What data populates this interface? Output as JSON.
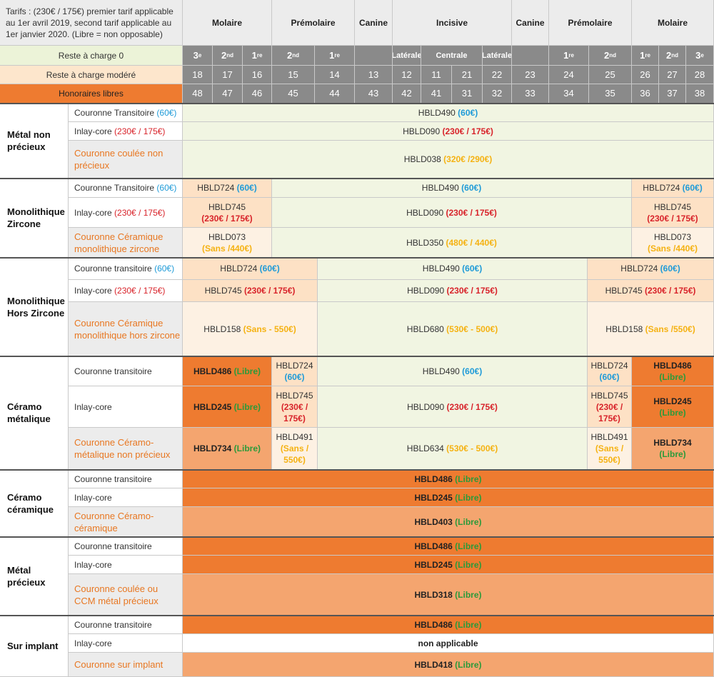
{
  "header": {
    "tarif_note": "Tarifs : (230€ / 175€) premier tarif applicable au 1er avril 2019, second tarif applicable au 1er janvier 2020. (Libre = non opposable)",
    "groups": [
      "Molaire",
      "Prémolaire",
      "Canine",
      "Incisive",
      "Canine",
      "Prémolaire",
      "Molaire"
    ],
    "rac0_label": "Reste à charge 0",
    "rac0_cells": [
      "3e",
      "2nd",
      "1re",
      "2nd",
      "1re",
      "",
      "Latérale",
      "Centrale",
      "Latérale",
      "",
      "1re",
      "2nd",
      "1re",
      "2nd",
      "3e"
    ],
    "racm_label": "Reste à charge modéré",
    "racm_teeth": [
      "18",
      "17",
      "16",
      "15",
      "14",
      "13",
      "12",
      "11",
      "21",
      "22",
      "23",
      "24",
      "25",
      "26",
      "27",
      "28"
    ],
    "hl_label": "Honoraires libres",
    "hl_teeth": [
      "48",
      "47",
      "46",
      "45",
      "44",
      "43",
      "42",
      "41",
      "31",
      "32",
      "33",
      "34",
      "35",
      "36",
      "37",
      "38"
    ]
  },
  "sections": [
    {
      "name": "Métal non précieux",
      "rows": [
        {
          "label": "Couronne Transitoire",
          "price": "(60€)",
          "cells": [
            {
              "code": "HBLD490",
              "price": "(60€)"
            }
          ]
        },
        {
          "label": "Inlay-core",
          "price": "(230€ / 175€)",
          "cells": [
            {
              "code": "HBLD090",
              "price": "(230€ / 175€)"
            }
          ]
        },
        {
          "label": "Couronne coulée non précieux",
          "cells": [
            {
              "code": "HBLD038",
              "price": "(320€ /290€)"
            }
          ]
        }
      ]
    },
    {
      "name": "Monolithique Zircone",
      "rows": [
        {
          "label": "Couronne Transitoire",
          "price": "(60€)",
          "cells": [
            {
              "code": "HBLD724",
              "price": "(60€)"
            },
            {
              "code": "HBLD490",
              "price": "(60€)"
            },
            {
              "code": "HBLD724",
              "price": "(60€)"
            }
          ]
        },
        {
          "label": "Inlay-core",
          "price": "(230€ / 175€)",
          "cells": [
            {
              "code": "HBLD745",
              "price": "(230€ / 175€)"
            },
            {
              "code": "HBLD090",
              "price": "(230€ / 175€)"
            },
            {
              "code": "HBLD745",
              "price": "(230€ / 175€)"
            }
          ]
        },
        {
          "label": "Couronne Céramique monolithique zircone",
          "cells": [
            {
              "code": "HBLD073",
              "price": "(Sans /440€)"
            },
            {
              "code": "HBLD350",
              "price": "(480€ / 440€)"
            },
            {
              "code": "HBLD073",
              "price": "(Sans /440€)"
            }
          ]
        }
      ]
    },
    {
      "name": "Monolithique Hors Zircone",
      "rows": [
        {
          "label": "Couronne transitoire",
          "price": "(60€)",
          "cells": [
            {
              "code": "HBLD724",
              "price": "(60€)"
            },
            {
              "code": "HBLD490",
              "price": "(60€)"
            },
            {
              "code": "HBLD724",
              "price": "(60€)"
            }
          ]
        },
        {
          "label": "Inlay-core",
          "price": "(230€ / 175€)",
          "cells": [
            {
              "code": "HBLD745",
              "price": "(230€ / 175€)"
            },
            {
              "code": "HBLD090",
              "price": "(230€ / 175€)"
            },
            {
              "code": "HBLD745",
              "price": "(230€ / 175€)"
            }
          ]
        },
        {
          "label": "Couronne Céramique monolithique hors zircone",
          "cells": [
            {
              "code": "HBLD158",
              "price": "(Sans - 550€)"
            },
            {
              "code": "HBLD680",
              "price": "(530€ - 500€)"
            },
            {
              "code": "HBLD158",
              "price": "(Sans /550€)"
            }
          ]
        }
      ]
    },
    {
      "name": "Céramo métalique",
      "rows": [
        {
          "label": "Couronne transitoire",
          "cells": [
            {
              "code": "HBLD486",
              "price": "(Libre)"
            },
            {
              "code": "HBLD724",
              "price": "(60€)"
            },
            {
              "code": "HBLD490",
              "price": "(60€)"
            },
            {
              "code": "HBLD724",
              "price": "(60€)"
            },
            {
              "code": "HBLD486",
              "price": "(Libre)"
            }
          ]
        },
        {
          "label": "Inlay-core",
          "cells": [
            {
              "code": "HBLD245",
              "price": "(Libre)"
            },
            {
              "code": "HBLD745",
              "price": "(230€ / 175€)"
            },
            {
              "code": "HBLD090",
              "price": "(230€ / 175€)"
            },
            {
              "code": "HBLD745",
              "price": "(230€ / 175€)"
            },
            {
              "code": "HBLD245",
              "price": "(Libre)"
            }
          ]
        },
        {
          "label": "Couronne Céramo-métalique non précieux",
          "cells": [
            {
              "code": "HBLD734",
              "price": "(Libre)"
            },
            {
              "code": "HBLD491",
              "price": "(Sans / 550€)"
            },
            {
              "code": "HBLD634",
              "price": "(530€ - 500€)"
            },
            {
              "code": "HBLD491",
              "price": "(Sans / 550€)"
            },
            {
              "code": "HBLD734",
              "price": "(Libre)"
            }
          ]
        }
      ]
    },
    {
      "name": "Céramo céramique",
      "rows": [
        {
          "label": "Couronne transitoire",
          "cells": [
            {
              "code": "HBLD486",
              "price": "(Libre)"
            }
          ]
        },
        {
          "label": "Inlay-core",
          "cells": [
            {
              "code": "HBLD245",
              "price": "(Libre)"
            }
          ]
        },
        {
          "label": "Couronne Céramo-céramique",
          "cells": [
            {
              "code": "HBLD403",
              "price": "(Libre)"
            }
          ]
        }
      ]
    },
    {
      "name": "Métal précieux",
      "rows": [
        {
          "label": "Couronne transitoire",
          "cells": [
            {
              "code": "HBLD486",
              "price": "(Libre)"
            }
          ]
        },
        {
          "label": "Inlay-core",
          "cells": [
            {
              "code": "HBLD245",
              "price": "(Libre)"
            }
          ]
        },
        {
          "label": "Couronne coulée ou CCM métal précieux",
          "cells": [
            {
              "code": "HBLD318",
              "price": "(Libre)"
            }
          ]
        }
      ]
    },
    {
      "name": "Sur implant",
      "rows": [
        {
          "label": "Couronne transitoire",
          "cells": [
            {
              "code": "HBLD486",
              "price": "(Libre)"
            }
          ]
        },
        {
          "label": "Inlay-core",
          "cells": [
            {
              "code": "non applicable"
            }
          ]
        },
        {
          "label": "Couronne sur implant",
          "cells": [
            {
              "code": "HBLD418",
              "price": "(Libre)"
            }
          ]
        }
      ]
    }
  ]
}
